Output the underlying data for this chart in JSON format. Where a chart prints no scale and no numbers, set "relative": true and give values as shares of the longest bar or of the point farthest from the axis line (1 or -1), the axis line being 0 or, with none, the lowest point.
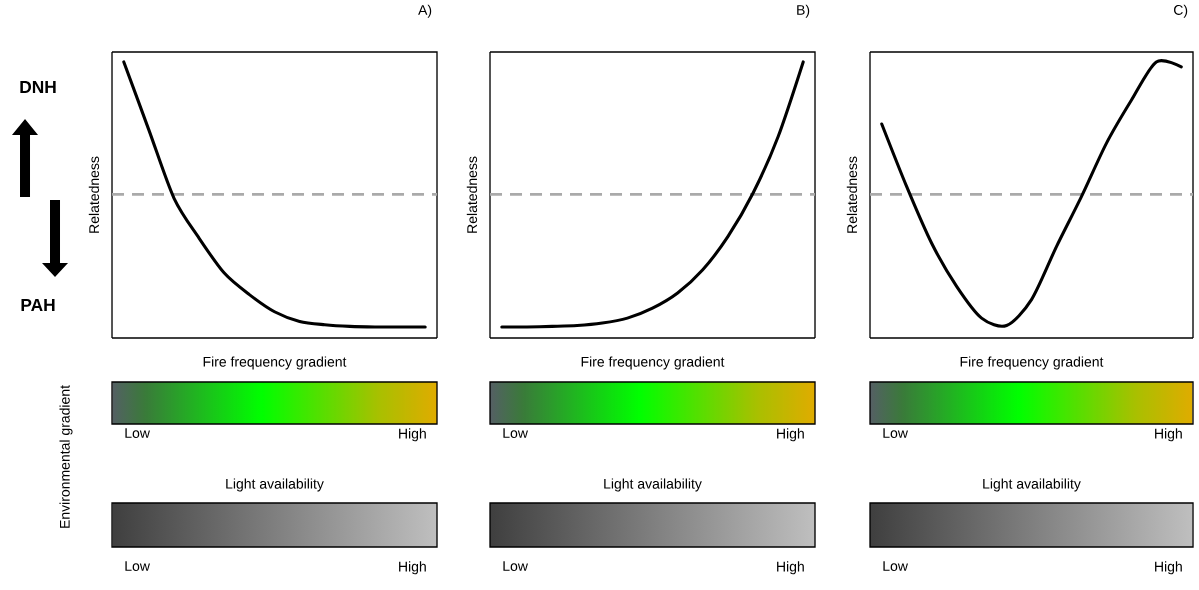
{
  "chart_data": [
    {
      "type": "line",
      "title": "A)",
      "ylabel": "Relatedness",
      "relative": true,
      "categories": [
        null,
        null,
        null,
        null,
        null,
        null,
        null,
        null,
        null,
        null,
        null,
        null,
        null
      ],
      "series": [
        {
          "color": "#000000",
          "values": [
            1.0,
            0.753,
            0.506,
            0.361,
            0.235,
            0.157,
            0.095,
            0.06,
            0.048,
            0.042,
            0.04,
            0.04,
            0.04
          ]
        }
      ],
      "ref_lines": [
        {
          "axis": "y",
          "value": 0.52,
          "color": "#aaaaaa",
          "line_style": "dashed"
        }
      ],
      "marker": "none",
      "line_style": "solid",
      "annotations": [
        "Fire frequency gradient",
        "Low",
        "High",
        "Light availability",
        "Low",
        "High",
        "DNH",
        "PAH",
        "Environmental gradient"
      ]
    },
    {
      "type": "line",
      "title": "B)",
      "ylabel": "Relatedness",
      "relative": true,
      "categories": [
        null,
        null,
        null,
        null,
        null,
        null,
        null,
        null,
        null,
        null,
        null,
        null,
        null
      ],
      "series": [
        {
          "color": "#000000",
          "values": [
            0.04,
            0.04,
            0.042,
            0.045,
            0.054,
            0.072,
            0.108,
            0.163,
            0.247,
            0.367,
            0.524,
            0.729,
            1.0
          ]
        }
      ],
      "ref_lines": [
        {
          "axis": "y",
          "value": 0.52,
          "color": "#aaaaaa",
          "line_style": "dashed"
        }
      ],
      "marker": "none",
      "line_style": "solid",
      "annotations": [
        "Fire frequency gradient",
        "Low",
        "High",
        "Light availability",
        "Low",
        "High"
      ]
    },
    {
      "type": "line",
      "title": "C)",
      "ylabel": "Relatedness",
      "relative": true,
      "categories": [
        null,
        null,
        null,
        null,
        null,
        null,
        null,
        null,
        null,
        null,
        null,
        null,
        null
      ],
      "series": [
        {
          "color": "#000000",
          "values": [
            0.775,
            0.548,
            0.343,
            0.187,
            0.072,
            0.045,
            0.139,
            0.331,
            0.512,
            0.705,
            0.861,
            1.0,
            0.982
          ]
        }
      ],
      "ref_lines": [
        {
          "axis": "y",
          "value": 0.52,
          "color": "#aaaaaa",
          "line_style": "dashed"
        }
      ],
      "marker": "none",
      "line_style": "solid",
      "annotations": [
        "Fire frequency gradient",
        "Low",
        "High",
        "Light availability",
        "Low",
        "High"
      ]
    }
  ]
}
